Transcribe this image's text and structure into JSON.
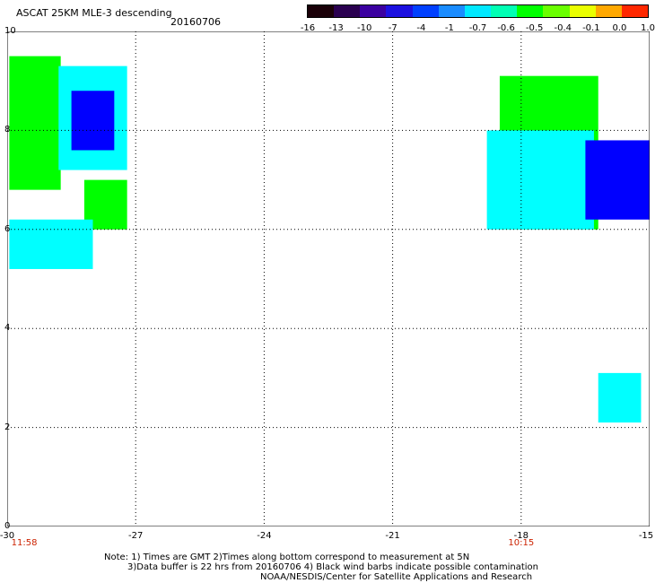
{
  "header": {
    "title": "ASCAT 25KM MLE-3 descending",
    "date": "20160706"
  },
  "colorbar": {
    "labels": [
      "-16",
      "-13",
      "-10",
      "-7",
      "-4",
      "-1",
      "-0.7",
      "-0.6",
      "-0.5",
      "-0.4",
      "-0.1",
      "0.0",
      "1.0"
    ],
    "colors": [
      "#1a0008",
      "#2a0050",
      "#3b00a0",
      "#1c10e0",
      "#0040ff",
      "#1a8cff",
      "#00e8ff",
      "#00ffb4",
      "#00ff00",
      "#6aff00",
      "#eaff00",
      "#ffa800",
      "#ff2800"
    ]
  },
  "axes": {
    "y_ticks": [
      "10",
      "8",
      "6",
      "4",
      "2",
      "0"
    ],
    "x_ticks": [
      "-30",
      "-27",
      "-24",
      "-21",
      "-18",
      "-15"
    ],
    "lat_range": [
      0,
      10
    ],
    "lon_range": [
      -30,
      -15
    ],
    "grid": true
  },
  "times": [
    {
      "label": "11:58",
      "lon": -29.6
    },
    {
      "label": "10:15",
      "lon": -18
    }
  ],
  "notes": {
    "line1": "Note: 1) Times are GMT 2)Times along bottom correspond to measurement at 5N",
    "line2": "3)Data buffer is 22 hrs from 20160706 4) Black wind barbs indicate possible contamination",
    "line3": "NOAA/NESDIS/Center for Satellite Applications and Research"
  },
  "data_regions": [
    {
      "label": "green",
      "color": "#00ff00",
      "lat": [
        6.8,
        9.5
      ],
      "lon": [
        -29.95,
        -28.75
      ]
    },
    {
      "label": "cyan",
      "color": "#00ffff",
      "lat": [
        7.2,
        9.3
      ],
      "lon": [
        -28.8,
        -27.2
      ]
    },
    {
      "label": "blue",
      "color": "#0000ff",
      "lat": [
        7.6,
        8.8
      ],
      "lon": [
        -28.5,
        -27.5
      ]
    },
    {
      "label": "green",
      "color": "#00ff00",
      "lat": [
        6.0,
        7.0
      ],
      "lon": [
        -28.2,
        -27.2
      ]
    },
    {
      "label": "cyan",
      "color": "#00ffff",
      "lat": [
        5.2,
        6.2
      ],
      "lon": [
        -29.95,
        -28.0
      ]
    },
    {
      "label": "green",
      "color": "#00ff00",
      "lat": [
        6.0,
        9.1
      ],
      "lon": [
        -18.5,
        -16.2
      ]
    },
    {
      "label": "cyan",
      "color": "#00ffff",
      "lat": [
        6.0,
        8.0
      ],
      "lon": [
        -18.8,
        -16.3
      ]
    },
    {
      "label": "blue",
      "color": "#0000ff",
      "lat": [
        6.2,
        7.8
      ],
      "lon": [
        -16.5,
        -15.0
      ]
    },
    {
      "label": "cyan",
      "color": "#00ffff",
      "lat": [
        2.1,
        3.1
      ],
      "lon": [
        -16.2,
        -15.2
      ]
    }
  ]
}
